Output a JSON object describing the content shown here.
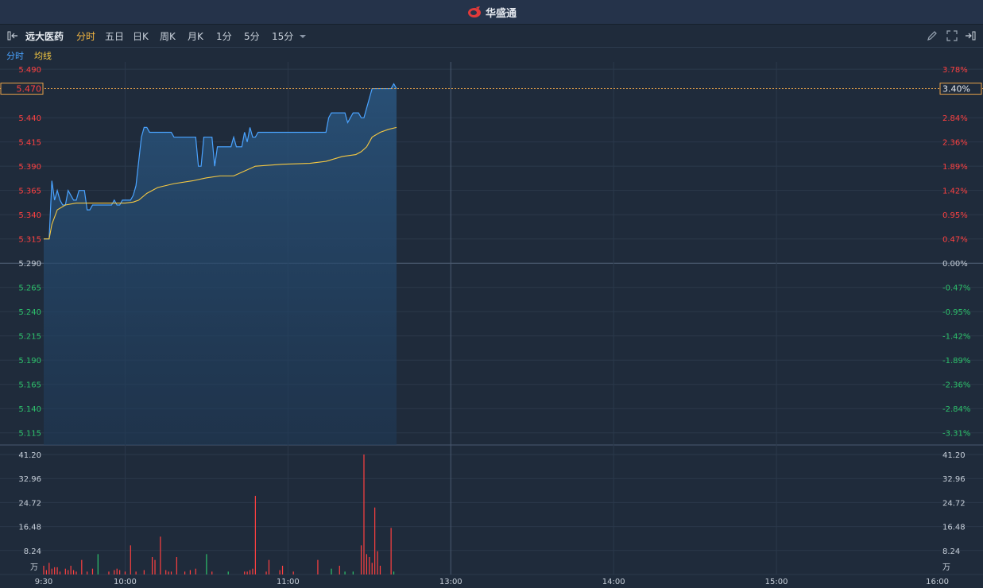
{
  "brand": {
    "name": "华盛通"
  },
  "toolbar": {
    "stock_name": "远大医药",
    "periods": [
      "分时",
      "五日",
      "日K",
      "周K",
      "月K",
      "1分",
      "5分",
      "15分"
    ],
    "active_period": "分时"
  },
  "legend": {
    "line": "分时",
    "avg": "均线"
  },
  "colors": {
    "up": "#ff4040",
    "down": "#2dc26b",
    "neutral": "#c8d0da",
    "price_line": "#4aa3ff",
    "avg_line": "#f5c842",
    "active": "#f5b742"
  },
  "price_axis": {
    "left": [
      "5.490",
      "5.440",
      "5.415",
      "5.390",
      "5.365",
      "5.340",
      "5.315",
      "5.290",
      "5.265",
      "5.240",
      "5.215",
      "5.190",
      "5.165",
      "5.140",
      "5.115"
    ],
    "right": [
      "3.78%",
      "2.84%",
      "2.36%",
      "1.89%",
      "1.42%",
      "0.95%",
      "0.47%",
      "0.00%",
      "-0.47%",
      "-0.95%",
      "-1.42%",
      "-1.89%",
      "-2.36%",
      "-2.84%",
      "-3.31%"
    ],
    "current_price": "5.470",
    "current_pct": "3.40%"
  },
  "volume_axis": {
    "labels": [
      "41.20",
      "32.96",
      "24.72",
      "16.48",
      "8.24"
    ],
    "unit": "万"
  },
  "time_axis": [
    "9:30",
    "10:00",
    "11:00",
    "13:00",
    "14:00",
    "15:00",
    "16:00"
  ],
  "chart_data": {
    "type": "line",
    "base_price": 5.29,
    "y_range": [
      5.1025,
      5.4975
    ],
    "volume_max": 41.2,
    "price": [
      [
        0,
        5.315
      ],
      [
        2,
        5.315
      ],
      [
        3,
        5.375
      ],
      [
        4,
        5.355
      ],
      [
        5,
        5.365
      ],
      [
        6,
        5.355
      ],
      [
        7,
        5.35
      ],
      [
        8,
        5.35
      ],
      [
        9,
        5.365
      ],
      [
        10,
        5.36
      ],
      [
        11,
        5.355
      ],
      [
        12,
        5.355
      ],
      [
        13,
        5.365
      ],
      [
        14,
        5.365
      ],
      [
        15,
        5.365
      ],
      [
        16,
        5.345
      ],
      [
        17,
        5.345
      ],
      [
        18,
        5.35
      ],
      [
        19,
        5.35
      ],
      [
        20,
        5.35
      ],
      [
        21,
        5.35
      ],
      [
        22,
        5.35
      ],
      [
        23,
        5.35
      ],
      [
        24,
        5.35
      ],
      [
        25,
        5.35
      ],
      [
        26,
        5.355
      ],
      [
        27,
        5.35
      ],
      [
        28,
        5.35
      ],
      [
        29,
        5.355
      ],
      [
        30,
        5.355
      ],
      [
        31,
        5.355
      ],
      [
        32,
        5.355
      ],
      [
        33,
        5.36
      ],
      [
        34,
        5.37
      ],
      [
        35,
        5.395
      ],
      [
        36,
        5.42
      ],
      [
        37,
        5.43
      ],
      [
        38,
        5.43
      ],
      [
        39,
        5.425
      ],
      [
        40,
        5.425
      ],
      [
        41,
        5.425
      ],
      [
        42,
        5.425
      ],
      [
        43,
        5.425
      ],
      [
        44,
        5.425
      ],
      [
        45,
        5.425
      ],
      [
        46,
        5.425
      ],
      [
        47,
        5.425
      ],
      [
        48,
        5.42
      ],
      [
        49,
        5.42
      ],
      [
        50,
        5.42
      ],
      [
        51,
        5.42
      ],
      [
        52,
        5.42
      ],
      [
        53,
        5.42
      ],
      [
        54,
        5.42
      ],
      [
        55,
        5.42
      ],
      [
        56,
        5.42
      ],
      [
        57,
        5.39
      ],
      [
        58,
        5.39
      ],
      [
        59,
        5.42
      ],
      [
        60,
        5.42
      ],
      [
        61,
        5.42
      ],
      [
        62,
        5.42
      ],
      [
        63,
        5.39
      ],
      [
        64,
        5.41
      ],
      [
        65,
        5.41
      ],
      [
        66,
        5.41
      ],
      [
        67,
        5.41
      ],
      [
        68,
        5.41
      ],
      [
        69,
        5.41
      ],
      [
        70,
        5.42
      ],
      [
        71,
        5.41
      ],
      [
        72,
        5.41
      ],
      [
        73,
        5.41
      ],
      [
        74,
        5.425
      ],
      [
        75,
        5.415
      ],
      [
        76,
        5.43
      ],
      [
        77,
        5.42
      ],
      [
        78,
        5.42
      ],
      [
        79,
        5.425
      ],
      [
        80,
        5.425
      ],
      [
        81,
        5.425
      ],
      [
        82,
        5.425
      ],
      [
        83,
        5.425
      ],
      [
        84,
        5.425
      ],
      [
        85,
        5.425
      ],
      [
        86,
        5.425
      ],
      [
        87,
        5.425
      ],
      [
        88,
        5.425
      ],
      [
        89,
        5.425
      ],
      [
        90,
        5.425
      ],
      [
        91,
        5.425
      ],
      [
        92,
        5.425
      ],
      [
        93,
        5.425
      ],
      [
        94,
        5.425
      ],
      [
        95,
        5.425
      ],
      [
        96,
        5.425
      ],
      [
        97,
        5.425
      ],
      [
        98,
        5.425
      ],
      [
        99,
        5.425
      ],
      [
        100,
        5.425
      ],
      [
        101,
        5.425
      ],
      [
        102,
        5.425
      ],
      [
        103,
        5.425
      ],
      [
        104,
        5.425
      ],
      [
        105,
        5.44
      ],
      [
        106,
        5.445
      ],
      [
        107,
        5.445
      ],
      [
        108,
        5.445
      ],
      [
        109,
        5.445
      ],
      [
        110,
        5.445
      ],
      [
        111,
        5.445
      ],
      [
        112,
        5.435
      ],
      [
        113,
        5.44
      ],
      [
        114,
        5.445
      ],
      [
        115,
        5.445
      ],
      [
        116,
        5.445
      ],
      [
        117,
        5.44
      ],
      [
        118,
        5.44
      ],
      [
        119,
        5.45
      ],
      [
        120,
        5.46
      ],
      [
        121,
        5.47
      ],
      [
        122,
        5.47
      ],
      [
        123,
        5.47
      ],
      [
        124,
        5.47
      ],
      [
        125,
        5.47
      ],
      [
        126,
        5.47
      ],
      [
        127,
        5.47
      ],
      [
        128,
        5.47
      ],
      [
        129,
        5.475
      ],
      [
        130,
        5.47
      ]
    ],
    "avg": [
      [
        0,
        5.315
      ],
      [
        2,
        5.315
      ],
      [
        3,
        5.33
      ],
      [
        5,
        5.345
      ],
      [
        8,
        5.35
      ],
      [
        12,
        5.352
      ],
      [
        20,
        5.352
      ],
      [
        30,
        5.352
      ],
      [
        33,
        5.353
      ],
      [
        35,
        5.355
      ],
      [
        38,
        5.362
      ],
      [
        42,
        5.368
      ],
      [
        48,
        5.372
      ],
      [
        55,
        5.375
      ],
      [
        60,
        5.378
      ],
      [
        65,
        5.38
      ],
      [
        70,
        5.38
      ],
      [
        74,
        5.385
      ],
      [
        78,
        5.39
      ],
      [
        88,
        5.392
      ],
      [
        98,
        5.393
      ],
      [
        104,
        5.395
      ],
      [
        110,
        5.4
      ],
      [
        115,
        5.402
      ],
      [
        117,
        5.405
      ],
      [
        119,
        5.41
      ],
      [
        121,
        5.42
      ],
      [
        124,
        5.425
      ],
      [
        127,
        5.428
      ],
      [
        130,
        5.43
      ]
    ],
    "volume": [
      [
        0,
        3,
        "up"
      ],
      [
        1,
        1.5,
        "up"
      ],
      [
        2,
        4,
        "up"
      ],
      [
        3,
        2,
        "up"
      ],
      [
        4,
        2.5,
        "up"
      ],
      [
        5,
        2.5,
        "up"
      ],
      [
        6,
        1,
        "up"
      ],
      [
        8,
        2,
        "up"
      ],
      [
        9,
        1.5,
        "up"
      ],
      [
        10,
        3,
        "up"
      ],
      [
        11,
        1.5,
        "up"
      ],
      [
        12,
        1,
        "up"
      ],
      [
        14,
        5,
        "up"
      ],
      [
        16,
        1,
        "up"
      ],
      [
        18,
        2,
        "up"
      ],
      [
        20,
        7,
        "down"
      ],
      [
        24,
        1,
        "up"
      ],
      [
        26,
        1.5,
        "up"
      ],
      [
        27,
        2,
        "up"
      ],
      [
        28,
        1.5,
        "up"
      ],
      [
        30,
        1,
        "up"
      ],
      [
        32,
        10,
        "up"
      ],
      [
        34,
        1,
        "up"
      ],
      [
        37,
        1.5,
        "up"
      ],
      [
        40,
        6,
        "up"
      ],
      [
        41,
        5,
        "up"
      ],
      [
        43,
        13,
        "up"
      ],
      [
        45,
        1.5,
        "up"
      ],
      [
        46,
        1,
        "up"
      ],
      [
        47,
        1,
        "up"
      ],
      [
        49,
        6,
        "up"
      ],
      [
        52,
        1,
        "up"
      ],
      [
        54,
        1.5,
        "up"
      ],
      [
        56,
        2,
        "up"
      ],
      [
        60,
        7,
        "down"
      ],
      [
        62,
        1,
        "up"
      ],
      [
        68,
        1,
        "down"
      ],
      [
        74,
        1,
        "up"
      ],
      [
        75,
        1,
        "up"
      ],
      [
        76,
        1.5,
        "up"
      ],
      [
        77,
        2,
        "up"
      ],
      [
        78,
        27,
        "up"
      ],
      [
        82,
        1,
        "up"
      ],
      [
        83,
        5,
        "up"
      ],
      [
        87,
        1.5,
        "up"
      ],
      [
        88,
        3,
        "up"
      ],
      [
        92,
        1,
        "up"
      ],
      [
        101,
        5,
        "up"
      ],
      [
        106,
        2,
        "down"
      ],
      [
        109,
        3,
        "up"
      ],
      [
        111,
        1,
        "down"
      ],
      [
        114,
        1,
        "down"
      ],
      [
        117,
        10,
        "up"
      ],
      [
        118,
        41.2,
        "up"
      ],
      [
        119,
        7,
        "up"
      ],
      [
        120,
        6,
        "up"
      ],
      [
        121,
        4,
        "up"
      ],
      [
        122,
        23,
        "up"
      ],
      [
        123,
        8,
        "up"
      ],
      [
        124,
        3,
        "up"
      ],
      [
        128,
        16,
        "up"
      ],
      [
        129,
        1,
        "down"
      ]
    ]
  }
}
